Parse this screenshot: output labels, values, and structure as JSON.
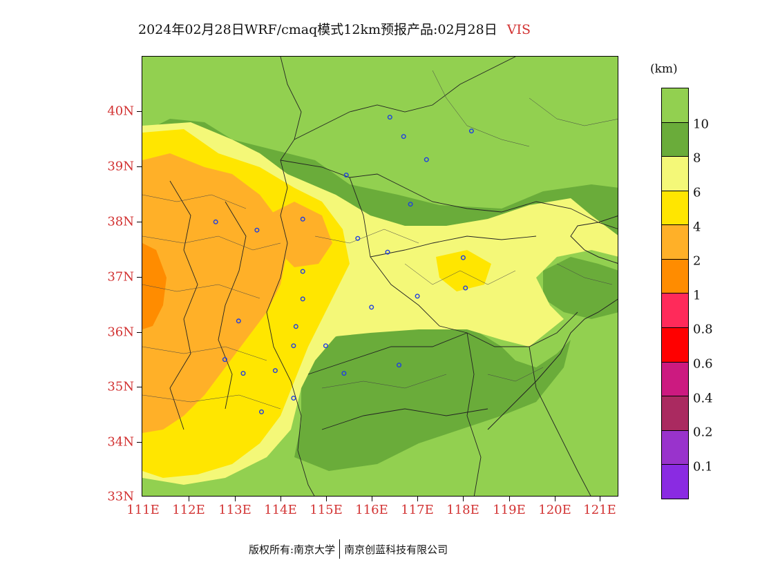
{
  "title": {
    "text": "2024年02月28日WRF/cmaq模式12km预报产品:02月28日",
    "variable": "VIS"
  },
  "axes": {
    "y_ticks": [
      "40N",
      "39N",
      "38N",
      "37N",
      "36N",
      "35N",
      "34N",
      "33N"
    ],
    "x_ticks": [
      "111E",
      "112E",
      "113E",
      "114E",
      "115E",
      "116E",
      "117E",
      "118E",
      "119E",
      "120E",
      "121E"
    ]
  },
  "legend": {
    "unit": "(km)",
    "labels": [
      "10",
      "8",
      "6",
      "4",
      "2",
      "1",
      "0.8",
      "0.6",
      "0.4",
      "0.2",
      "0.1"
    ],
    "colors": [
      "#92d050",
      "#6aac3a",
      "#f4f878",
      "#ffe600",
      "#ffb028",
      "#ff8c00",
      "#ff2a5a",
      "#ff0000",
      "#cc1a80",
      "#aa2a60",
      "#9933cc",
      "#8a2be2"
    ]
  },
  "map": {
    "lon_range": [
      111,
      121.4
    ],
    "lat_range": [
      33,
      41
    ],
    "city_icon": "city-marker-icon",
    "cities": [
      {
        "lon": 112.6,
        "lat": 38.0
      },
      {
        "lon": 113.5,
        "lat": 37.85
      },
      {
        "lon": 114.5,
        "lat": 38.05
      },
      {
        "lon": 115.7,
        "lat": 37.7
      },
      {
        "lon": 116.35,
        "lat": 37.45
      },
      {
        "lon": 114.5,
        "lat": 37.1
      },
      {
        "lon": 114.5,
        "lat": 36.6
      },
      {
        "lon": 113.1,
        "lat": 36.2
      },
      {
        "lon": 114.35,
        "lat": 36.1
      },
      {
        "lon": 114.3,
        "lat": 35.75
      },
      {
        "lon": 115.0,
        "lat": 35.75
      },
      {
        "lon": 112.8,
        "lat": 35.5
      },
      {
        "lon": 113.9,
        "lat": 35.3
      },
      {
        "lon": 113.2,
        "lat": 35.25
      },
      {
        "lon": 115.4,
        "lat": 35.25
      },
      {
        "lon": 114.3,
        "lat": 34.8
      },
      {
        "lon": 113.6,
        "lat": 34.55
      },
      {
        "lon": 116.0,
        "lat": 36.45
      },
      {
        "lon": 117.0,
        "lat": 36.65
      },
      {
        "lon": 118.0,
        "lat": 37.35
      },
      {
        "lon": 118.05,
        "lat": 36.8
      },
      {
        "lon": 116.6,
        "lat": 35.4
      },
      {
        "lon": 116.4,
        "lat": 39.9
      },
      {
        "lon": 116.7,
        "lat": 39.55
      },
      {
        "lon": 117.2,
        "lat": 39.13
      },
      {
        "lon": 118.18,
        "lat": 39.65
      },
      {
        "lon": 115.45,
        "lat": 38.85
      },
      {
        "lon": 116.85,
        "lat": 38.32
      }
    ]
  },
  "footer": {
    "copyright": "版权所有:南京大学",
    "company": "南京创蓝科技有限公司"
  }
}
